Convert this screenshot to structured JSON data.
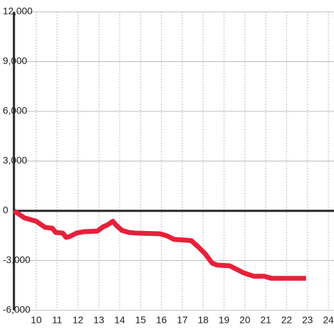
{
  "chart_data": {
    "type": "line",
    "x": [
      8.93,
      9.43,
      9.77,
      10,
      10.43,
      10.77,
      10.93,
      11.27,
      11.43,
      11.6,
      11.93,
      12.27,
      12.93,
      13.2,
      13.43,
      13.67,
      13.87,
      14.1,
      14.43,
      14.77,
      15.93,
      16.27,
      16.6,
      17.1,
      17.43,
      17.77,
      18.1,
      18.43,
      18.67,
      19.27,
      19.93,
      20.43,
      20.93,
      21.27,
      22.93
    ],
    "series": [
      {
        "color": "#e8203a",
        "values": [
          0,
          -420,
          -545,
          -630,
          -1000,
          -1050,
          -1300,
          -1340,
          -1600,
          -1550,
          -1340,
          -1260,
          -1220,
          -965,
          -840,
          -630,
          -920,
          -1175,
          -1300,
          -1340,
          -1385,
          -1510,
          -1720,
          -1760,
          -1800,
          -2180,
          -2600,
          -3150,
          -3270,
          -3315,
          -3735,
          -3945,
          -3945,
          -4070,
          -4070
        ]
      }
    ],
    "xlim": [
      8.93,
      24.27
    ],
    "xticks": [
      10,
      11,
      12,
      13,
      14,
      15,
      16,
      17,
      18,
      19,
      20,
      21,
      22,
      23,
      24
    ],
    "ylim": [
      -6000,
      12000
    ],
    "yticks": [
      {
        "value": -6000,
        "label": "-6,000"
      },
      {
        "value": -3000,
        "label": "-3,000"
      },
      0,
      {
        "value": 3000,
        "label": "3,000"
      },
      {
        "value": 6000,
        "label": "6,000"
      },
      {
        "value": 9000,
        "label": "9,000"
      },
      {
        "value": 12000,
        "label": "12,000"
      }
    ],
    "grid": true
  }
}
